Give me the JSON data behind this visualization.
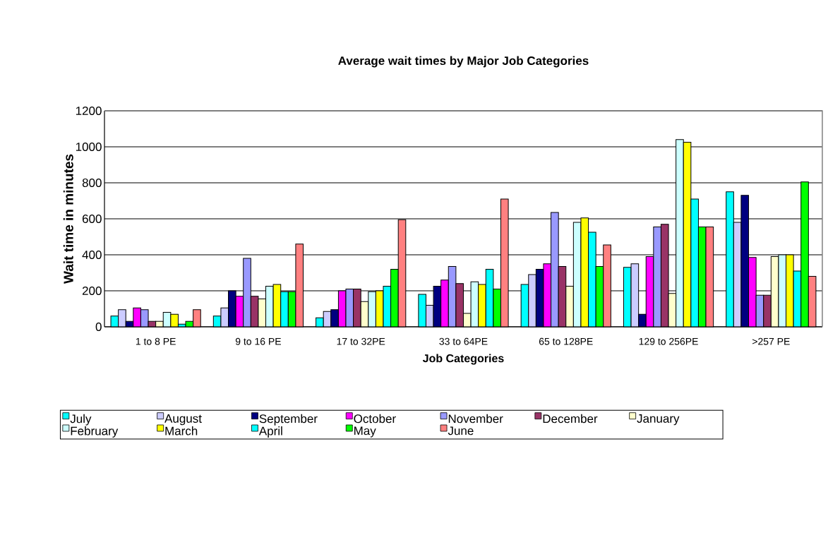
{
  "chart_data": {
    "type": "bar",
    "title": "Average wait times by Major Job Categories",
    "xlabel": "Job Categories",
    "ylabel": "Wait time in minutes",
    "categories": [
      "1 to 8 PE",
      "9 to 16 PE",
      "17 to 32PE",
      "33 to 64PE",
      "65 to 128PE",
      "129 to 256PE",
      ">257 PE"
    ],
    "series": [
      {
        "name": "July",
        "color": "#00ffff",
        "values": [
          60,
          60,
          50,
          180,
          235,
          330,
          750
        ]
      },
      {
        "name": "August",
        "color": "#ccccff",
        "values": [
          95,
          105,
          85,
          120,
          290,
          350,
          580
        ]
      },
      {
        "name": "September",
        "color": "#000080",
        "values": [
          30,
          200,
          95,
          225,
          320,
          70,
          730
        ]
      },
      {
        "name": "October",
        "color": "#ff00ff",
        "values": [
          105,
          170,
          200,
          260,
          350,
          390,
          385
        ]
      },
      {
        "name": "November",
        "color": "#9999ff",
        "values": [
          95,
          380,
          210,
          335,
          635,
          555,
          175
        ]
      },
      {
        "name": "December",
        "color": "#993366",
        "values": [
          30,
          170,
          210,
          240,
          335,
          570,
          175
        ]
      },
      {
        "name": "January",
        "color": "#ffffcc",
        "values": [
          30,
          155,
          140,
          75,
          225,
          185,
          390
        ]
      },
      {
        "name": "February",
        "color": "#ccffff",
        "values": [
          80,
          225,
          195,
          250,
          580,
          1040,
          400
        ]
      },
      {
        "name": "March",
        "color": "#ffff00",
        "values": [
          70,
          235,
          200,
          235,
          605,
          1025,
          400
        ]
      },
      {
        "name": "April",
        "color": "#00ffff",
        "values": [
          15,
          195,
          225,
          320,
          525,
          710,
          310
        ]
      },
      {
        "name": "May",
        "color": "#00ff00",
        "values": [
          30,
          195,
          320,
          210,
          335,
          555,
          805
        ]
      },
      {
        "name": "June",
        "color": "#ff8080",
        "values": [
          95,
          460,
          595,
          710,
          455,
          555,
          280
        ]
      }
    ],
    "ylim": [
      0,
      1200
    ],
    "yticks": [
      0,
      200,
      400,
      600,
      800,
      1000,
      1200
    ],
    "grid": "y",
    "legend": "bottom"
  }
}
